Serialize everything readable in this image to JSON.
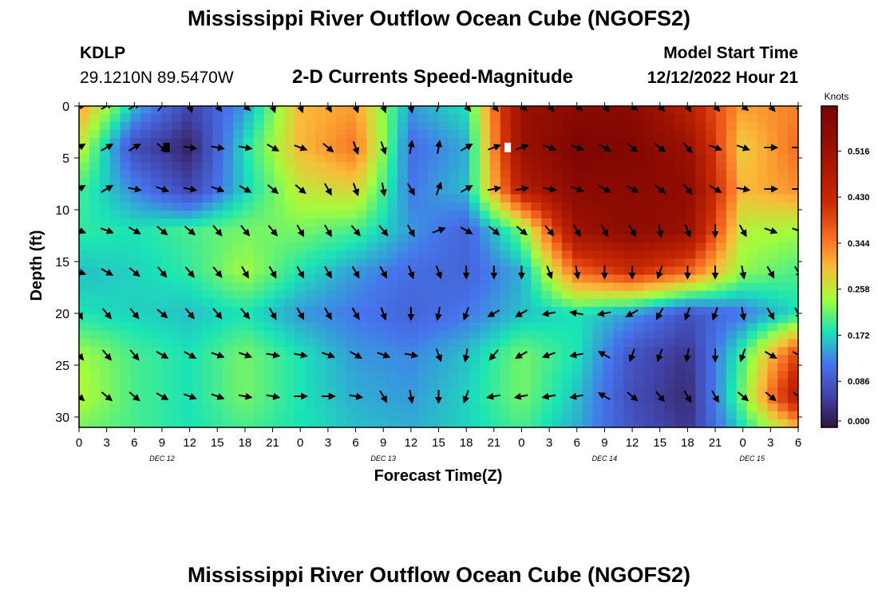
{
  "header": {
    "title": "Mississippi River Outflow Ocean Cube (NGOFS2)",
    "station": "KDLP",
    "coords": "29.1210N  89.5470W",
    "subtitle": "2-D Currents Speed-Magnitude",
    "model_start_label": "Model Start Time",
    "model_start_value": "12/12/2022 Hour 21"
  },
  "footer": {
    "title": "Mississippi River Outflow Ocean Cube (NGOFS2)"
  },
  "chart_data": {
    "type": "heatmap",
    "title": "2-D Currents Speed-Magnitude",
    "xlabel": "Forecast Time(Z)",
    "ylabel": "Depth (ft)",
    "x_tick_labels": [
      "0",
      "3",
      "6",
      "9",
      "12",
      "15",
      "18",
      "21",
      "0",
      "3",
      "6",
      "9",
      "12",
      "15",
      "18",
      "21",
      "0",
      "3",
      "6",
      "9",
      "12",
      "15",
      "18",
      "21",
      "0",
      "3",
      "6"
    ],
    "day_labels": [
      "DEC 12",
      "DEC 13",
      "DEC 14",
      "DEC 15"
    ],
    "day_label_hours": [
      9,
      33,
      57,
      73
    ],
    "xlim_hours": [
      0,
      78
    ],
    "y_ticks": [
      0,
      5,
      10,
      15,
      20,
      25,
      30
    ],
    "ylim_depth_ft": [
      0,
      31
    ],
    "colorbar": {
      "unit": "Knots",
      "ticks": [
        "0.516",
        "0.430",
        "0.344",
        "0.258",
        "0.172",
        "0.086",
        "0.000"
      ],
      "tick_values": [
        0.516,
        0.43,
        0.344,
        0.258,
        0.172,
        0.086,
        0.0
      ],
      "range": [
        0,
        0.6
      ]
    },
    "hours": [
      0,
      6,
      12,
      18,
      24,
      30,
      36,
      42,
      48,
      54,
      60,
      66,
      72,
      78
    ],
    "depths_ft": [
      0,
      4,
      8,
      12,
      16,
      20,
      24,
      28,
      31
    ],
    "speed_knots": [
      [
        0.32,
        0.16,
        0.06,
        0.14,
        0.3,
        0.32,
        0.14,
        0.18,
        0.52,
        0.56,
        0.56,
        0.45,
        0.32,
        0.34
      ],
      [
        0.26,
        0.07,
        0.02,
        0.18,
        0.3,
        0.35,
        0.11,
        0.15,
        0.52,
        0.59,
        0.58,
        0.52,
        0.28,
        0.36
      ],
      [
        0.2,
        0.13,
        0.06,
        0.17,
        0.26,
        0.28,
        0.12,
        0.16,
        0.46,
        0.56,
        0.56,
        0.55,
        0.3,
        0.33
      ],
      [
        0.19,
        0.18,
        0.2,
        0.22,
        0.22,
        0.2,
        0.14,
        0.1,
        0.22,
        0.51,
        0.55,
        0.52,
        0.25,
        0.24
      ],
      [
        0.16,
        0.17,
        0.19,
        0.24,
        0.18,
        0.14,
        0.11,
        0.1,
        0.15,
        0.36,
        0.42,
        0.36,
        0.23,
        0.2
      ],
      [
        0.18,
        0.17,
        0.16,
        0.18,
        0.14,
        0.12,
        0.1,
        0.12,
        0.16,
        0.18,
        0.14,
        0.08,
        0.12,
        0.18
      ],
      [
        0.24,
        0.2,
        0.18,
        0.22,
        0.18,
        0.14,
        0.13,
        0.16,
        0.22,
        0.18,
        0.08,
        0.04,
        0.2,
        0.4
      ],
      [
        0.25,
        0.2,
        0.18,
        0.22,
        0.18,
        0.15,
        0.14,
        0.17,
        0.22,
        0.16,
        0.07,
        0.03,
        0.22,
        0.48
      ],
      [
        0.22,
        0.2,
        0.18,
        0.2,
        0.18,
        0.16,
        0.15,
        0.17,
        0.2,
        0.15,
        0.08,
        0.04,
        0.18,
        0.3
      ]
    ],
    "vector_depths_ft": [
      0,
      4,
      8,
      12,
      16,
      20,
      24,
      28
    ],
    "vector_hours": [
      0,
      3,
      6,
      9,
      12,
      15,
      18,
      21,
      24,
      27,
      30,
      33,
      36,
      39,
      42,
      45,
      48,
      51,
      54,
      57,
      60,
      63,
      66,
      69,
      72,
      75,
      78
    ],
    "vector_directions_deg": [
      [
        80,
        60,
        60,
        40,
        160,
        140,
        130,
        160,
        160,
        150,
        160,
        160,
        170,
        20,
        140,
        140,
        130,
        140,
        130,
        140,
        130,
        140,
        150,
        140,
        130,
        140,
        140
      ],
      [
        60,
        60,
        60,
        130,
        100,
        100,
        100,
        120,
        110,
        130,
        160,
        160,
        10,
        10,
        60,
        70,
        70,
        110,
        110,
        120,
        130,
        130,
        140,
        110,
        110,
        90,
        90
      ],
      [
        60,
        60,
        100,
        110,
        100,
        110,
        120,
        130,
        130,
        150,
        160,
        170,
        150,
        20,
        60,
        80,
        80,
        100,
        110,
        120,
        120,
        130,
        140,
        120,
        100,
        90,
        90
      ],
      [
        110,
        110,
        120,
        130,
        130,
        140,
        140,
        140,
        150,
        150,
        140,
        140,
        150,
        70,
        120,
        130,
        130,
        140,
        150,
        150,
        150,
        170,
        160,
        180,
        150,
        110,
        110
      ],
      [
        110,
        120,
        130,
        140,
        140,
        140,
        150,
        150,
        150,
        150,
        150,
        150,
        160,
        160,
        180,
        180,
        180,
        160,
        170,
        180,
        180,
        200,
        180,
        180,
        170,
        150,
        150
      ],
      [
        150,
        140,
        140,
        130,
        140,
        140,
        140,
        150,
        150,
        150,
        150,
        160,
        180,
        190,
        200,
        240,
        240,
        260,
        280,
        260,
        240,
        210,
        200,
        200,
        170,
        150,
        150
      ],
      [
        140,
        140,
        140,
        120,
        120,
        110,
        110,
        100,
        100,
        110,
        120,
        110,
        100,
        160,
        190,
        220,
        240,
        250,
        260,
        300,
        200,
        200,
        190,
        180,
        200,
        120,
        120
      ],
      [
        130,
        130,
        130,
        120,
        110,
        110,
        100,
        100,
        90,
        90,
        100,
        150,
        170,
        180,
        200,
        260,
        260,
        260,
        260,
        300,
        130,
        140,
        150,
        150,
        130,
        130,
        130
      ]
    ],
    "markers": [
      {
        "hour": 9.5,
        "depth_ft": 4,
        "color": "#000000"
      },
      {
        "hour": 46.5,
        "depth_ft": 4,
        "color": "#ffffff"
      }
    ]
  }
}
